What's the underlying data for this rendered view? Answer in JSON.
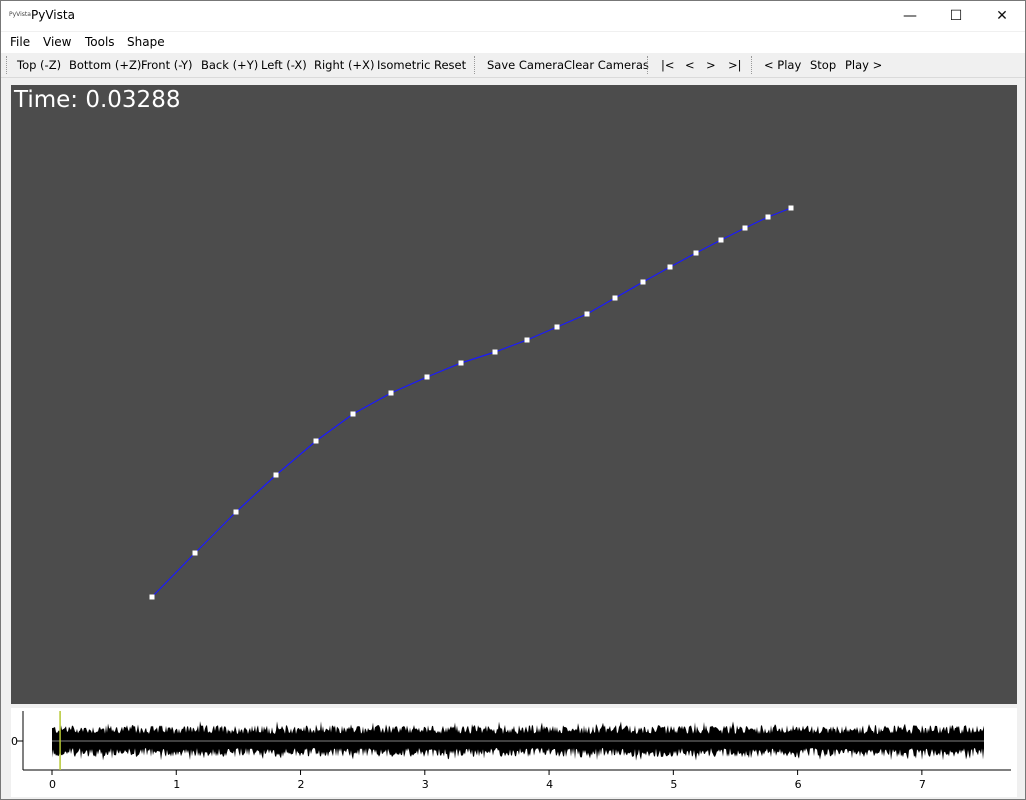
{
  "window": {
    "title": "PyVista",
    "icon_text": "PyVista",
    "controls": {
      "minimize": "—",
      "maximize": "☐",
      "close": "✕"
    }
  },
  "menubar": [
    "File",
    "View",
    "Tools",
    "Shape"
  ],
  "toolbar": {
    "views": [
      "Top (-Z)",
      "Bottom (+Z)",
      "Front (-Y)",
      "Back (+Y)",
      "Left (-X)",
      "Right (+X)",
      "Isometric",
      "Reset"
    ],
    "camera": [
      "Save Camera",
      "Clear Cameras"
    ],
    "nav": [
      "|<",
      "<",
      ">",
      ">|"
    ],
    "play": [
      "< Play",
      "Stop",
      "Play >"
    ]
  },
  "viewport": {
    "time_label": "Time: 0.03288",
    "background": "#4c4c4c",
    "line_color": "#1a1aff",
    "point_color": "#ffffff"
  },
  "waveform": {
    "y_tick": "0",
    "x_ticks": [
      "0",
      "1",
      "2",
      "3",
      "4",
      "5",
      "6",
      "7"
    ],
    "x_range": [
      0,
      7.5
    ],
    "cursor_time": 0.03288,
    "cursor_color": "#b5c732",
    "trace_color": "#000000"
  }
}
